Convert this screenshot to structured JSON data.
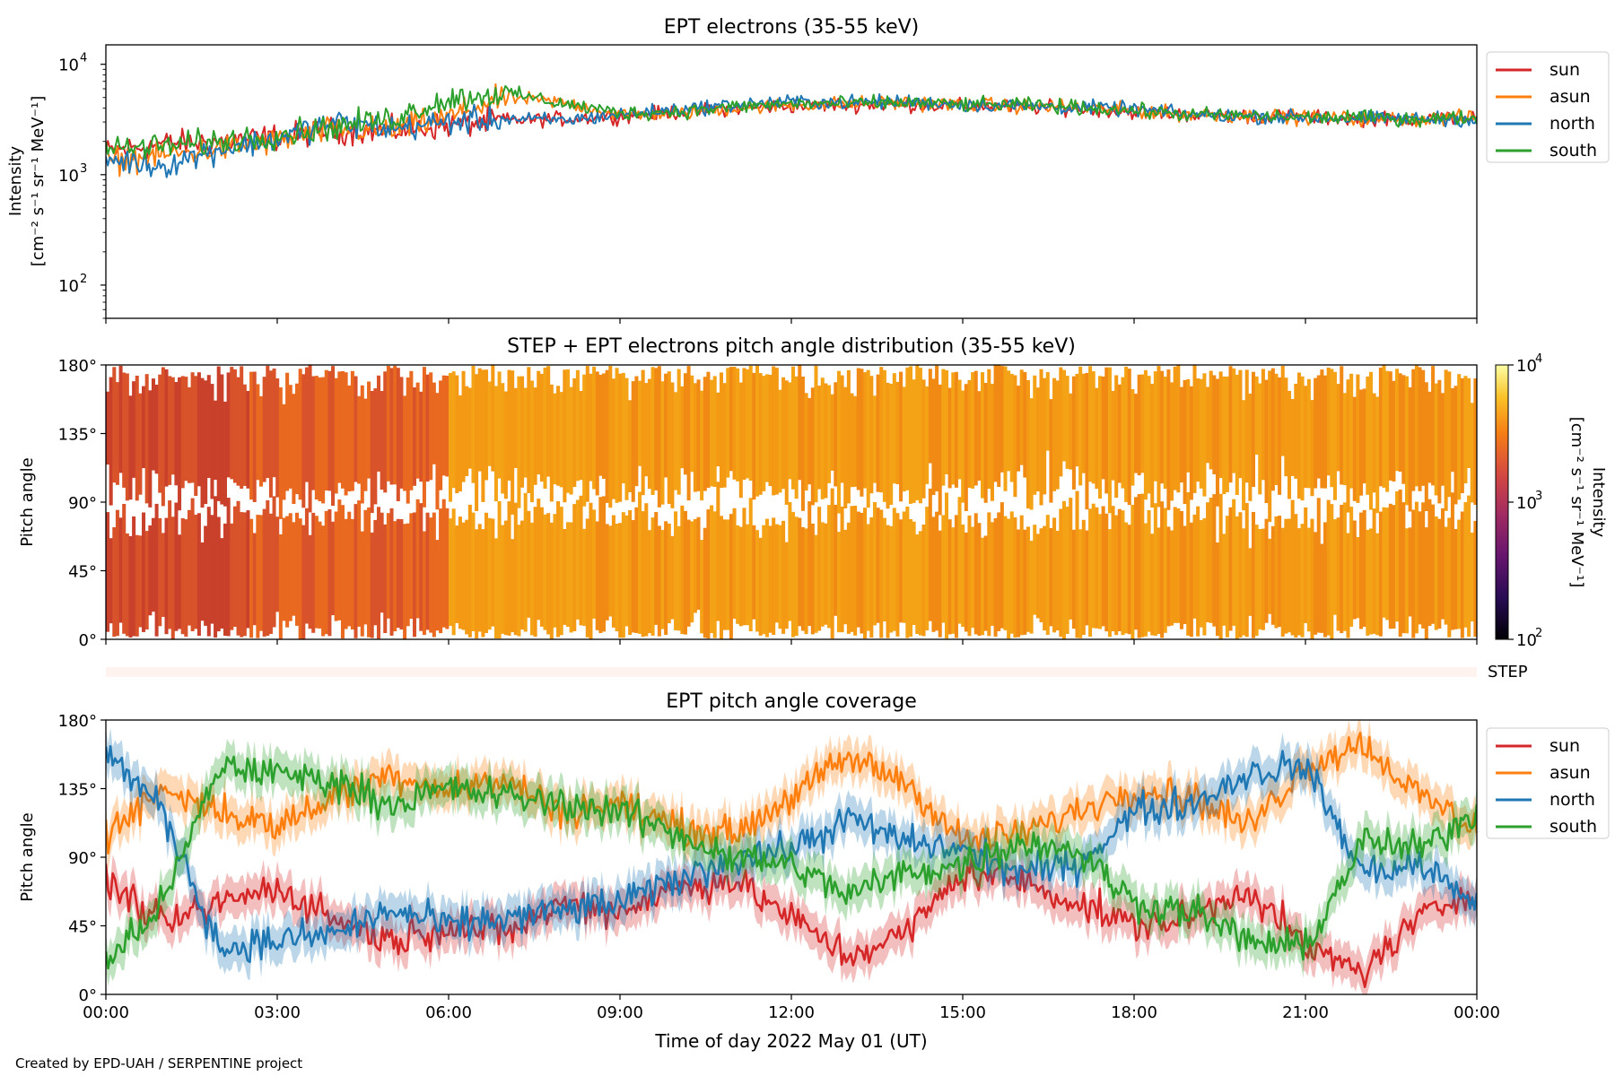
{
  "colors": {
    "sun": "#d62728",
    "asun": "#ff7f0e",
    "north": "#1f77b4",
    "south": "#2ca02c",
    "step_bar": "#fff3ef"
  },
  "x_ticks": [
    "00:00",
    "03:00",
    "06:00",
    "09:00",
    "12:00",
    "15:00",
    "18:00",
    "21:00",
    "00:00"
  ],
  "xlabel": "Time of day 2022 May 01 (UT)",
  "footer": "Created by EPD-UAH / SERPENTINE project",
  "step_label": "STEP",
  "chart_data": [
    {
      "type": "line",
      "title": "EPT electrons (35-55 keV)",
      "ylabel_line1": "Intensity",
      "ylabel_line2": "[cm⁻² s⁻¹ sr⁻¹ MeV⁻¹]",
      "yscale": "log",
      "ylim": [
        50,
        15000
      ],
      "y_ticks": [
        {
          "value": 100,
          "base": "10",
          "exp": "2"
        },
        {
          "value": 1000,
          "base": "10",
          "exp": "3"
        },
        {
          "value": 10000,
          "base": "10",
          "exp": "4"
        }
      ],
      "xlim_hours": [
        0,
        24
      ],
      "legend_placement": "right",
      "grid": false,
      "x": [
        0,
        1,
        2,
        3,
        4,
        5,
        6,
        7,
        8,
        9,
        10,
        11,
        12,
        13,
        14,
        15,
        16,
        17,
        18,
        19,
        20,
        21,
        22,
        23,
        24
      ],
      "series": [
        {
          "name": "sun",
          "values": [
            1600,
            1900,
            2000,
            2200,
            2500,
            2500,
            2800,
            3100,
            3200,
            3400,
            3700,
            4000,
            4200,
            4300,
            4300,
            4200,
            4100,
            4000,
            3700,
            3500,
            3400,
            3300,
            3200,
            3200,
            3300
          ]
        },
        {
          "name": "asun",
          "values": [
            1300,
            1500,
            1700,
            2000,
            2600,
            2500,
            3300,
            5000,
            4500,
            3500,
            3600,
            4000,
            4300,
            4400,
            4500,
            4300,
            4200,
            4100,
            3800,
            3500,
            3400,
            3300,
            3200,
            3200,
            3300
          ]
        },
        {
          "name": "north",
          "values": [
            1400,
            1200,
            1700,
            2100,
            3000,
            2600,
            3000,
            3200,
            3100,
            3500,
            3900,
            4300,
            4600,
            4500,
            4600,
            4300,
            4200,
            4100,
            3900,
            3500,
            3400,
            3300,
            3200,
            3200,
            3200
          ]
        },
        {
          "name": "south",
          "values": [
            1700,
            1800,
            2000,
            2300,
            2700,
            3200,
            4800,
            5500,
            4400,
            3600,
            3700,
            4100,
            4400,
            4400,
            4500,
            4300,
            4300,
            4100,
            3800,
            3500,
            3400,
            3300,
            3300,
            3200,
            3300
          ]
        }
      ]
    },
    {
      "type": "heatmap",
      "title": "STEP + EPT electrons pitch angle distribution (35-55 keV)",
      "ylabel": "Pitch angle",
      "ylim": [
        0,
        180
      ],
      "y_ticks": [
        "0°",
        "45°",
        "90°",
        "135°",
        "180°"
      ],
      "colorbar": {
        "label_line1": "Intensity",
        "label_line2": "[cm⁻² s⁻¹ sr⁻¹ MeV⁻¹]",
        "scale": "log",
        "range": [
          100,
          10000
        ],
        "colormap": "inferno",
        "ticks": [
          {
            "value": 100,
            "base": "10",
            "exp": "2"
          },
          {
            "value": 1000,
            "base": "10",
            "exp": "3"
          },
          {
            "value": 10000,
            "base": "10",
            "exp": "4"
          }
        ]
      }
    },
    {
      "type": "line",
      "title": "EPT pitch angle coverage",
      "ylabel": "Pitch angle",
      "ylim": [
        0,
        180
      ],
      "y_ticks": [
        "0°",
        "45°",
        "90°",
        "135°",
        "180°"
      ],
      "xlim_hours": [
        0,
        24
      ],
      "legend_placement": "right",
      "grid": false,
      "x": [
        0,
        1,
        2,
        3,
        4,
        5,
        6,
        7,
        8,
        9,
        10,
        11,
        12,
        13,
        14,
        15,
        16,
        17,
        18,
        19,
        20,
        21,
        22,
        23,
        24
      ],
      "series": [
        {
          "name": "sun",
          "values": [
            75,
            45,
            60,
            70,
            50,
            35,
            45,
            40,
            60,
            55,
            70,
            75,
            50,
            25,
            40,
            80,
            75,
            60,
            45,
            50,
            70,
            30,
            15,
            50,
            70
          ]
        },
        {
          "name": "asun",
          "values": [
            105,
            135,
            120,
            110,
            130,
            145,
            135,
            140,
            120,
            125,
            110,
            105,
            130,
            155,
            140,
            100,
            105,
            120,
            135,
            130,
            110,
            150,
            165,
            130,
            110
          ]
        },
        {
          "name": "north",
          "values": [
            160,
            120,
            30,
            35,
            40,
            55,
            45,
            50,
            55,
            60,
            75,
            90,
            95,
            115,
            100,
            95,
            80,
            85,
            120,
            125,
            145,
            150,
            80,
            85,
            60
          ]
        },
        {
          "name": "south",
          "values": [
            20,
            60,
            150,
            145,
            140,
            125,
            135,
            130,
            125,
            120,
            105,
            90,
            85,
            65,
            80,
            85,
            100,
            95,
            60,
            55,
            35,
            30,
            100,
            95,
            120
          ]
        }
      ]
    }
  ]
}
